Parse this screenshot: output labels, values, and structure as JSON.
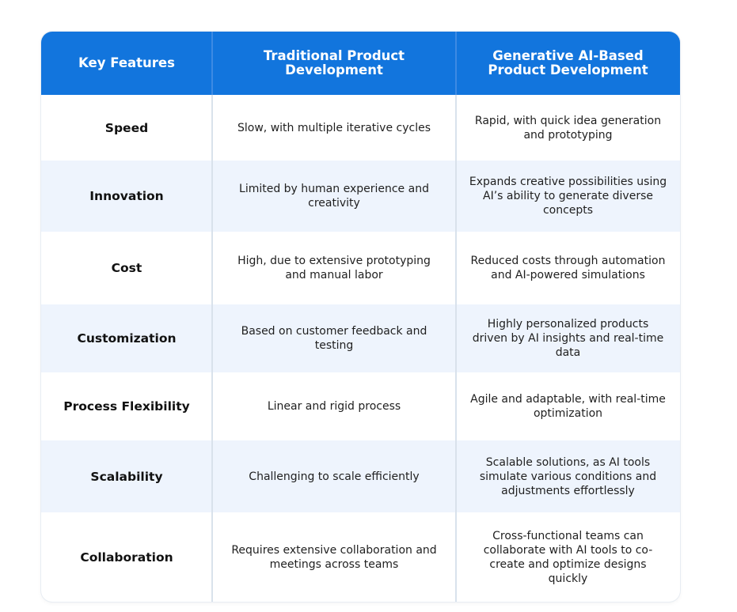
{
  "table": {
    "headers": [
      "Key Features",
      "Traditional Product Development",
      "Generative AI-Based Product Development"
    ],
    "rows": [
      {
        "feature": "Speed",
        "traditional": "Slow, with multiple iterative cycles",
        "generative": "Rapid, with quick idea generation and prototyping"
      },
      {
        "feature": "Innovation",
        "traditional": "Limited by human experience and creativity",
        "generative": "Expands creative possibilities using AI’s ability to generate diverse concepts"
      },
      {
        "feature": "Cost",
        "traditional": "High, due to extensive prototyping and manual labor",
        "generative": "Reduced costs through automation and AI-powered simulations"
      },
      {
        "feature": "Customization",
        "traditional": "Based on customer feedback and testing",
        "generative": "Highly personalized products driven by AI insights and real-time data"
      },
      {
        "feature": "Process Flexibility",
        "traditional": "Linear and rigid process",
        "generative": "Agile and adaptable, with real-time optimization"
      },
      {
        "feature": "Scalability",
        "traditional": "Challenging to scale efficiently",
        "generative": "Scalable solutions, as AI tools simulate various conditions and adjustments effortlessly"
      },
      {
        "feature": "Collaboration",
        "traditional": "Requires extensive collaboration and meetings across teams",
        "generative": "Cross-functional teams can collaborate with AI tools to co-create and optimize designs quickly"
      }
    ]
  },
  "colors": {
    "header_bg": "#1275dd",
    "header_text": "#ffffff",
    "alt_row_bg": "#eef4fd",
    "row_bg": "#ffffff",
    "divider": "#d9e2ec"
  }
}
